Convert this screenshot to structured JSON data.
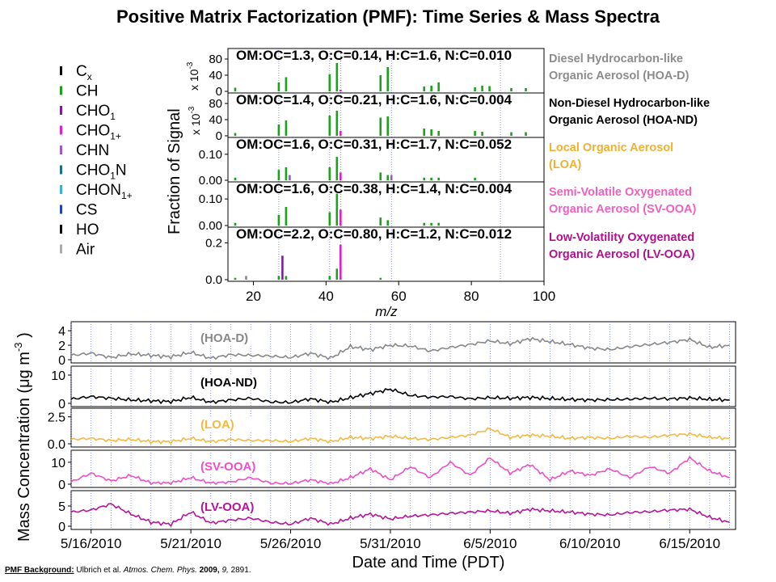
{
  "title": "Positive Matrix Factorization (PMF): Time Series & Mass Spectra",
  "legend": {
    "items": [
      {
        "label": "C",
        "sub": "x",
        "color": "#000000"
      },
      {
        "label": "CH",
        "sub": "",
        "color": "#1aa31a"
      },
      {
        "label": "CHO",
        "sub": "1",
        "color": "#7b1fa2"
      },
      {
        "label": "CHO",
        "sub": "1+",
        "color": "#e020c8"
      },
      {
        "label": "CHN",
        "sub": "",
        "color": "#9b59d0"
      },
      {
        "label": "CHO",
        "sub": "1",
        "tail": "N",
        "color": "#1f6e8c"
      },
      {
        "label": "CHON",
        "sub": "1+",
        "color": "#3ab0e0"
      },
      {
        "label": "CS",
        "sub": "",
        "color": "#2040c8"
      },
      {
        "label": "HO",
        "sub": "",
        "color": "#000000"
      },
      {
        "label": "Air",
        "sub": "",
        "color": "#aaaaaa"
      }
    ]
  },
  "citation": {
    "lead": "PMF Background:",
    "authors": "Ulbrich et al.",
    "journal": "Atmos. Chem. Phys.",
    "year": "2009,",
    "volume": "9,",
    "pages": "2891."
  },
  "chart_data": [
    {
      "type": "bar",
      "name": "mass-spectra",
      "ylabel": "Fraction of Signal",
      "xlabel": "m/z",
      "xlim": [
        13,
        100
      ],
      "xticks": [
        "20",
        "40",
        "60",
        "80",
        "100"
      ],
      "xtick_values": [
        20,
        40,
        60,
        80,
        100
      ],
      "factors": [
        {
          "id": "HOA-D",
          "ratio": "OM:OC=1.3, O:C=0.14, H:C=1.6, N:C=0.010",
          "label_lines": [
            "Diesel Hydrocarbon-like",
            "Organic Aerosol (HOA-D)"
          ],
          "label_color": "#8c8c8c",
          "scale": "x 10",
          "scale_exp": "-3",
          "yticks": [
            "80",
            "40",
            "0"
          ],
          "ytick_values": [
            80,
            40,
            0
          ],
          "ylim": [
            0,
            90
          ],
          "bars": [
            [
              15,
              9,
              "#1aa31a"
            ],
            [
              27,
              22,
              "#1aa31a"
            ],
            [
              29,
              35,
              "#1aa31a"
            ],
            [
              41,
              42,
              "#1aa31a"
            ],
            [
              43,
              70,
              "#1aa31a"
            ],
            [
              44,
              4,
              "#e020c8"
            ],
            [
              55,
              40,
              "#1aa31a"
            ],
            [
              57,
              60,
              "#1aa31a"
            ],
            [
              67,
              12,
              "#1aa31a"
            ],
            [
              69,
              14,
              "#1aa31a"
            ],
            [
              71,
              22,
              "#1aa31a"
            ],
            [
              81,
              10,
              "#1aa31a"
            ],
            [
              83,
              14,
              "#1aa31a"
            ],
            [
              85,
              13,
              "#1aa31a"
            ],
            [
              91,
              8,
              "#1aa31a"
            ],
            [
              95,
              8,
              "#1aa31a"
            ]
          ]
        },
        {
          "id": "HOA-ND",
          "ratio": "OM:OC=1.4, O:C=0.21, H:C=1.6, N:C=0.004",
          "label_lines": [
            "Non-Diesel Hydrocarbon-like",
            "Organic Aerosol (HOA-ND)"
          ],
          "label_color": "#000000",
          "scale": "x 10",
          "scale_exp": "-3",
          "yticks": [
            "80",
            "40",
            "0"
          ],
          "ytick_values": [
            80,
            40,
            0
          ],
          "ylim": [
            0,
            90
          ],
          "bars": [
            [
              15,
              7,
              "#1aa31a"
            ],
            [
              27,
              28,
              "#1aa31a"
            ],
            [
              29,
              38,
              "#1aa31a"
            ],
            [
              41,
              50,
              "#1aa31a"
            ],
            [
              43,
              62,
              "#1aa31a"
            ],
            [
              44,
              12,
              "#e020c8"
            ],
            [
              55,
              45,
              "#1aa31a"
            ],
            [
              57,
              48,
              "#1aa31a"
            ],
            [
              67,
              18,
              "#1aa31a"
            ],
            [
              69,
              16,
              "#1aa31a"
            ],
            [
              71,
              12,
              "#1aa31a"
            ],
            [
              81,
              12,
              "#1aa31a"
            ],
            [
              83,
              10,
              "#1aa31a"
            ],
            [
              91,
              9,
              "#1aa31a"
            ],
            [
              95,
              9,
              "#1aa31a"
            ]
          ]
        },
        {
          "id": "LOA",
          "ratio": "OM:OC=1.6, O:C=0.31, H:C=1.7, N:C=0.052",
          "label_lines": [
            "Local Organic Aerosol",
            "(LOA)"
          ],
          "label_color": "#f0b030",
          "scale": "",
          "scale_exp": "",
          "yticks": [
            "0.10",
            "0.00"
          ],
          "ytick_values": [
            0.1,
            0.0
          ],
          "ylim": [
            0,
            0.14
          ],
          "bars": [
            [
              15,
              0.01,
              "#1aa31a"
            ],
            [
              27,
              0.04,
              "#1aa31a"
            ],
            [
              29,
              0.05,
              "#1aa31a"
            ],
            [
              30,
              0.02,
              "#9b59d0"
            ],
            [
              41,
              0.05,
              "#1aa31a"
            ],
            [
              43,
              0.09,
              "#1aa31a"
            ],
            [
              44,
              0.03,
              "#e020c8"
            ],
            [
              55,
              0.03,
              "#1aa31a"
            ],
            [
              57,
              0.02,
              "#1aa31a"
            ],
            [
              58,
              0.02,
              "#9b59d0"
            ],
            [
              67,
              0.01,
              "#1aa31a"
            ],
            [
              69,
              0.01,
              "#1aa31a"
            ],
            [
              71,
              0.01,
              "#1aa31a"
            ],
            [
              81,
              0.01,
              "#1aa31a"
            ]
          ]
        },
        {
          "id": "SV-OOA",
          "ratio": "OM:OC=1.6, O:C=0.38, H:C=1.4, N:C=0.004",
          "label_lines": [
            "Semi-Volatile Oxygenated",
            "Organic Aerosol (SV-OOA)"
          ],
          "label_color": "#f060c0",
          "scale": "",
          "scale_exp": "",
          "yticks": [
            "0.10",
            "0.00"
          ],
          "ytick_values": [
            0.1,
            0.0
          ],
          "ylim": [
            0,
            0.14
          ],
          "bars": [
            [
              15,
              0.01,
              "#1aa31a"
            ],
            [
              27,
              0.04,
              "#1aa31a"
            ],
            [
              29,
              0.07,
              "#1aa31a"
            ],
            [
              41,
              0.05,
              "#1aa31a"
            ],
            [
              43,
              0.12,
              "#1aa31a"
            ],
            [
              44,
              0.06,
              "#e020c8"
            ],
            [
              55,
              0.03,
              "#1aa31a"
            ],
            [
              57,
              0.02,
              "#1aa31a"
            ],
            [
              67,
              0.01,
              "#1aa31a"
            ],
            [
              69,
              0.01,
              "#1aa31a"
            ],
            [
              71,
              0.01,
              "#1aa31a"
            ]
          ]
        },
        {
          "id": "LV-OOA",
          "ratio": "OM:OC=2.2, O:C=0.80, H:C=1.2, N:C=0.012",
          "label_lines": [
            "Low-Volatility Oxygenated",
            "Organic Aerosol (LV-OOA)"
          ],
          "label_color": "#b0108c",
          "scale": "",
          "scale_exp": "",
          "yticks": [
            "0.2",
            "0.0"
          ],
          "ytick_values": [
            0.2,
            0.0
          ],
          "ylim": [
            0,
            0.25
          ],
          "bars": [
            [
              15,
              0.01,
              "#1aa31a"
            ],
            [
              18,
              0.02,
              "#888888"
            ],
            [
              27,
              0.02,
              "#1aa31a"
            ],
            [
              28,
              0.13,
              "#7b1fa2"
            ],
            [
              29,
              0.02,
              "#1aa31a"
            ],
            [
              41,
              0.02,
              "#1aa31a"
            ],
            [
              43,
              0.06,
              "#1aa31a"
            ],
            [
              44,
              0.19,
              "#e020c8"
            ],
            [
              55,
              0.01,
              "#1aa31a"
            ]
          ]
        }
      ]
    },
    {
      "type": "line",
      "name": "time-series",
      "ylabel": "Mass Concentration (μg m",
      "ylabel_exp": "-3",
      "ylabel_close": ")",
      "xlabel": "Date and Time (PDT)",
      "xlim": [
        "2010-05-15",
        "2010-06-18"
      ],
      "xticks": [
        "5/16/2010",
        "5/21/2010",
        "5/26/2010",
        "5/31/2010",
        "6/5/2010",
        "6/10/2010",
        "6/15/2010"
      ],
      "xtick_days": [
        1,
        6,
        11,
        16,
        21,
        26,
        31
      ],
      "series": [
        {
          "name": "(HOA-D)",
          "color": "#888888",
          "yticks": [
            "4",
            "2",
            "0"
          ],
          "ytick_values": [
            4,
            2,
            0
          ],
          "ylim": [
            0,
            4.8
          ],
          "days": [
            0,
            1,
            2,
            3,
            4,
            5,
            6,
            7,
            8,
            9,
            10,
            11,
            12,
            13,
            14,
            15,
            16,
            17,
            18,
            19,
            20,
            21,
            22,
            23,
            24,
            25,
            26,
            27,
            28,
            29,
            30,
            31,
            32,
            33
          ],
          "values": [
            0.6,
            0.9,
            0.3,
            0.8,
            0.6,
            0.4,
            1.0,
            0.2,
            0.7,
            0.6,
            0.5,
            0.3,
            0.9,
            0.2,
            1.8,
            1.4,
            2.0,
            1.9,
            1.2,
            1.7,
            2.1,
            2.6,
            2.2,
            2.9,
            2.5,
            2.1,
            1.6,
            1.4,
            1.8,
            2.1,
            2.4,
            2.8,
            1.7,
            2.0
          ]
        },
        {
          "name": "(HOA-ND)",
          "color": "#000000",
          "yticks": [
            "10",
            "0"
          ],
          "ytick_values": [
            10,
            0
          ],
          "ylim": [
            0,
            12
          ],
          "days": [
            0,
            1,
            2,
            3,
            4,
            5,
            6,
            7,
            8,
            9,
            10,
            11,
            12,
            13,
            14,
            15,
            16,
            17,
            18,
            19,
            20,
            21,
            22,
            23,
            24,
            25,
            26,
            27,
            28,
            29,
            30,
            31,
            32,
            33
          ],
          "values": [
            1.5,
            2.4,
            1.8,
            1.2,
            0.9,
            0.6,
            2.1,
            0.4,
            1.2,
            1.8,
            0.5,
            0.3,
            1.6,
            0.4,
            2.0,
            3.5,
            5.0,
            2.8,
            2.2,
            2.4,
            1.6,
            2.0,
            1.8,
            2.1,
            1.7,
            1.4,
            1.2,
            1.3,
            1.5,
            1.8,
            1.6,
            1.9,
            1.4,
            1.2
          ]
        },
        {
          "name": "(LOA)",
          "color": "#f4b942",
          "yticks": [
            "2.5",
            "0.0"
          ],
          "ytick_values": [
            2.5,
            0.0
          ],
          "ylim": [
            0,
            3.0
          ],
          "days": [
            0,
            1,
            2,
            3,
            4,
            5,
            6,
            7,
            8,
            9,
            10,
            11,
            12,
            13,
            14,
            15,
            16,
            17,
            18,
            19,
            20,
            21,
            22,
            23,
            24,
            25,
            26,
            27,
            28,
            29,
            30,
            31,
            32,
            33
          ],
          "values": [
            0.4,
            0.5,
            0.3,
            0.4,
            0.2,
            0.2,
            0.5,
            0.2,
            0.4,
            0.3,
            0.3,
            0.2,
            0.5,
            0.2,
            0.6,
            0.5,
            0.7,
            0.5,
            0.4,
            0.6,
            0.8,
            1.4,
            0.6,
            0.8,
            0.7,
            0.5,
            0.6,
            0.5,
            0.7,
            0.6,
            0.8,
            0.9,
            0.6,
            0.5
          ]
        },
        {
          "name": "(SV-OOA)",
          "color": "#ee4fc8",
          "yticks": [
            "10",
            "0"
          ],
          "ytick_values": [
            10,
            0
          ],
          "ylim": [
            0,
            14
          ],
          "days": [
            0,
            1,
            2,
            3,
            4,
            5,
            6,
            7,
            8,
            9,
            10,
            11,
            12,
            13,
            14,
            15,
            16,
            17,
            18,
            19,
            20,
            21,
            22,
            23,
            24,
            25,
            26,
            27,
            28,
            29,
            30,
            31,
            32,
            33
          ],
          "values": [
            1.0,
            5.0,
            1.5,
            4.0,
            0.5,
            0.5,
            3.0,
            0.5,
            1.0,
            3.0,
            0.5,
            0.3,
            2.0,
            0.2,
            3.0,
            7.0,
            2.0,
            8.0,
            3.0,
            10.0,
            4.0,
            12.0,
            5.0,
            9.0,
            2.0,
            6.0,
            4.0,
            7.0,
            3.0,
            8.0,
            5.0,
            12.0,
            6.0,
            3.0
          ]
        },
        {
          "name": "(LV-OOA)",
          "color": "#b5159b",
          "yticks": [
            "5",
            "0"
          ],
          "ytick_values": [
            5,
            0
          ],
          "ylim": [
            0,
            8
          ],
          "days": [
            0,
            1,
            2,
            3,
            4,
            5,
            6,
            7,
            8,
            9,
            10,
            11,
            12,
            13,
            14,
            15,
            16,
            17,
            18,
            19,
            20,
            21,
            22,
            23,
            24,
            25,
            26,
            27,
            28,
            29,
            30,
            31,
            32,
            33
          ],
          "values": [
            3.5,
            4.0,
            5.5,
            3.0,
            1.0,
            0.5,
            3.5,
            0.8,
            1.5,
            2.0,
            1.0,
            0.5,
            2.0,
            0.5,
            2.0,
            3.0,
            1.8,
            2.5,
            2.8,
            3.2,
            3.5,
            3.8,
            3.2,
            4.2,
            3.8,
            3.5,
            3.0,
            2.8,
            3.4,
            3.6,
            4.0,
            4.2,
            2.2,
            1.0
          ]
        }
      ]
    }
  ]
}
